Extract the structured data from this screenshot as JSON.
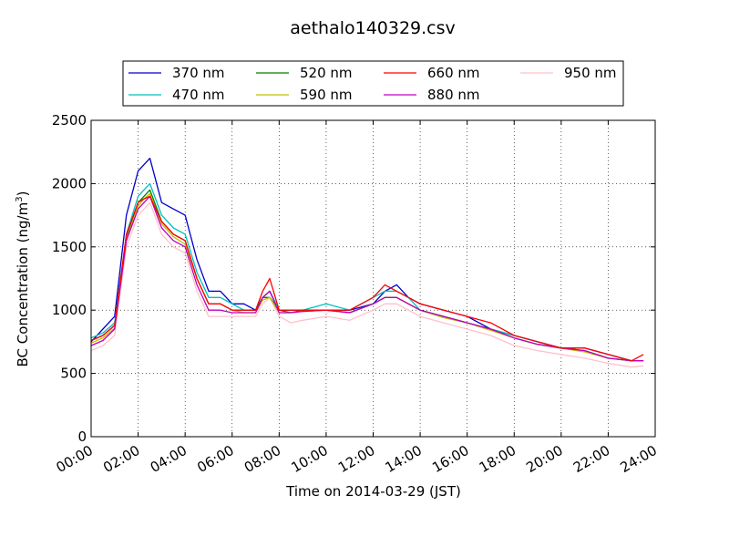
{
  "chart_data": {
    "type": "line",
    "title": "aethalo140329.csv",
    "xlabel": "Time on 2014-03-29 (JST)",
    "ylabel_main": "BC Concentration (ng/m",
    "ylabel_sup": "3",
    "ylabel_close": ")",
    "x_unit": "hours",
    "xlim": [
      0,
      24
    ],
    "ylim": [
      0,
      2500
    ],
    "x_ticks": [
      0,
      2,
      4,
      6,
      8,
      10,
      12,
      14,
      16,
      18,
      20,
      22,
      24
    ],
    "x_tick_labels": [
      "00:00",
      "02:00",
      "04:00",
      "06:00",
      "08:00",
      "10:00",
      "12:00",
      "14:00",
      "16:00",
      "18:00",
      "20:00",
      "22:00",
      "24:00"
    ],
    "y_ticks": [
      0,
      500,
      1000,
      1500,
      2000,
      2500
    ],
    "y_tick_labels": [
      "0",
      "500",
      "1000",
      "1500",
      "2000",
      "2500"
    ],
    "grid": true,
    "legend_position": "top",
    "x": [
      0,
      0.5,
      1,
      1.5,
      2,
      2.25,
      2.5,
      3,
      3.5,
      4,
      4.5,
      5,
      5.5,
      6,
      6.5,
      7,
      7.3,
      7.6,
      8,
      8.5,
      9,
      10,
      11,
      12,
      12.5,
      13,
      13.5,
      14,
      15,
      16,
      17,
      18,
      19,
      20,
      21,
      22,
      23,
      23.5
    ],
    "series": [
      {
        "name": "370 nm",
        "color": "#0000cc",
        "values": [
          750,
          850,
          950,
          1750,
          2100,
          2150,
          2200,
          1850,
          1800,
          1750,
          1400,
          1150,
          1150,
          1050,
          1050,
          1000,
          1100,
          1150,
          1000,
          1000,
          1000,
          1000,
          1000,
          1050,
          1150,
          1200,
          1100,
          1050,
          1000,
          950,
          850,
          800,
          750,
          700,
          700,
          650,
          600,
          600
        ]
      },
      {
        "name": "470 nm",
        "color": "#00bfbf",
        "values": [
          780,
          820,
          900,
          1600,
          1900,
          1950,
          2000,
          1750,
          1650,
          1600,
          1300,
          1100,
          1100,
          1050,
          1000,
          1000,
          1100,
          1150,
          1000,
          1000,
          1000,
          1050,
          1000,
          1100,
          1150,
          1150,
          1100,
          1000,
          950,
          900,
          850,
          800,
          750,
          700,
          680,
          620,
          600,
          600
        ]
      },
      {
        "name": "520 nm",
        "color": "#008000",
        "values": [
          760,
          800,
          880,
          1580,
          1850,
          1900,
          1950,
          1700,
          1600,
          1550,
          1250,
          1050,
          1050,
          1000,
          1000,
          1000,
          1100,
          1100,
          1000,
          980,
          1000,
          1000,
          980,
          1050,
          1100,
          1100,
          1050,
          1000,
          950,
          900,
          850,
          780,
          730,
          700,
          680,
          620,
          600,
          600
        ]
      },
      {
        "name": "590 nm",
        "color": "#bfbf00",
        "values": [
          740,
          780,
          860,
          1560,
          1820,
          1880,
          1920,
          1680,
          1580,
          1520,
          1250,
          1050,
          1050,
          1000,
          980,
          980,
          1080,
          1100,
          980,
          980,
          990,
          1000,
          980,
          1050,
          1100,
          1100,
          1050,
          1000,
          940,
          900,
          840,
          780,
          730,
          700,
          670,
          620,
          600,
          600
        ]
      },
      {
        "name": "660 nm",
        "color": "#ff0000",
        "values": [
          760,
          800,
          880,
          1600,
          1850,
          1880,
          1900,
          1700,
          1600,
          1550,
          1250,
          1050,
          1050,
          1000,
          1000,
          1000,
          1150,
          1250,
          1000,
          1000,
          1000,
          1000,
          1000,
          1100,
          1200,
          1150,
          1100,
          1050,
          1000,
          950,
          900,
          800,
          750,
          700,
          700,
          650,
          600,
          650
        ]
      },
      {
        "name": "880 nm",
        "color": "#bf00bf",
        "values": [
          720,
          760,
          850,
          1550,
          1800,
          1850,
          1900,
          1650,
          1550,
          1500,
          1200,
          1000,
          1000,
          980,
          980,
          980,
          1100,
          1150,
          980,
          980,
          990,
          1000,
          980,
          1050,
          1100,
          1100,
          1050,
          1000,
          950,
          900,
          850,
          780,
          730,
          700,
          680,
          620,
          600,
          600
        ]
      },
      {
        "name": "950 nm",
        "color": "#ffc0cb",
        "values": [
          680,
          720,
          800,
          1500,
          1750,
          1800,
          1850,
          1600,
          1500,
          1450,
          1150,
          950,
          950,
          950,
          950,
          950,
          1050,
          1100,
          950,
          900,
          920,
          950,
          920,
          1000,
          1050,
          1050,
          1000,
          950,
          900,
          850,
          800,
          720,
          680,
          650,
          620,
          580,
          550,
          560
        ]
      }
    ]
  }
}
